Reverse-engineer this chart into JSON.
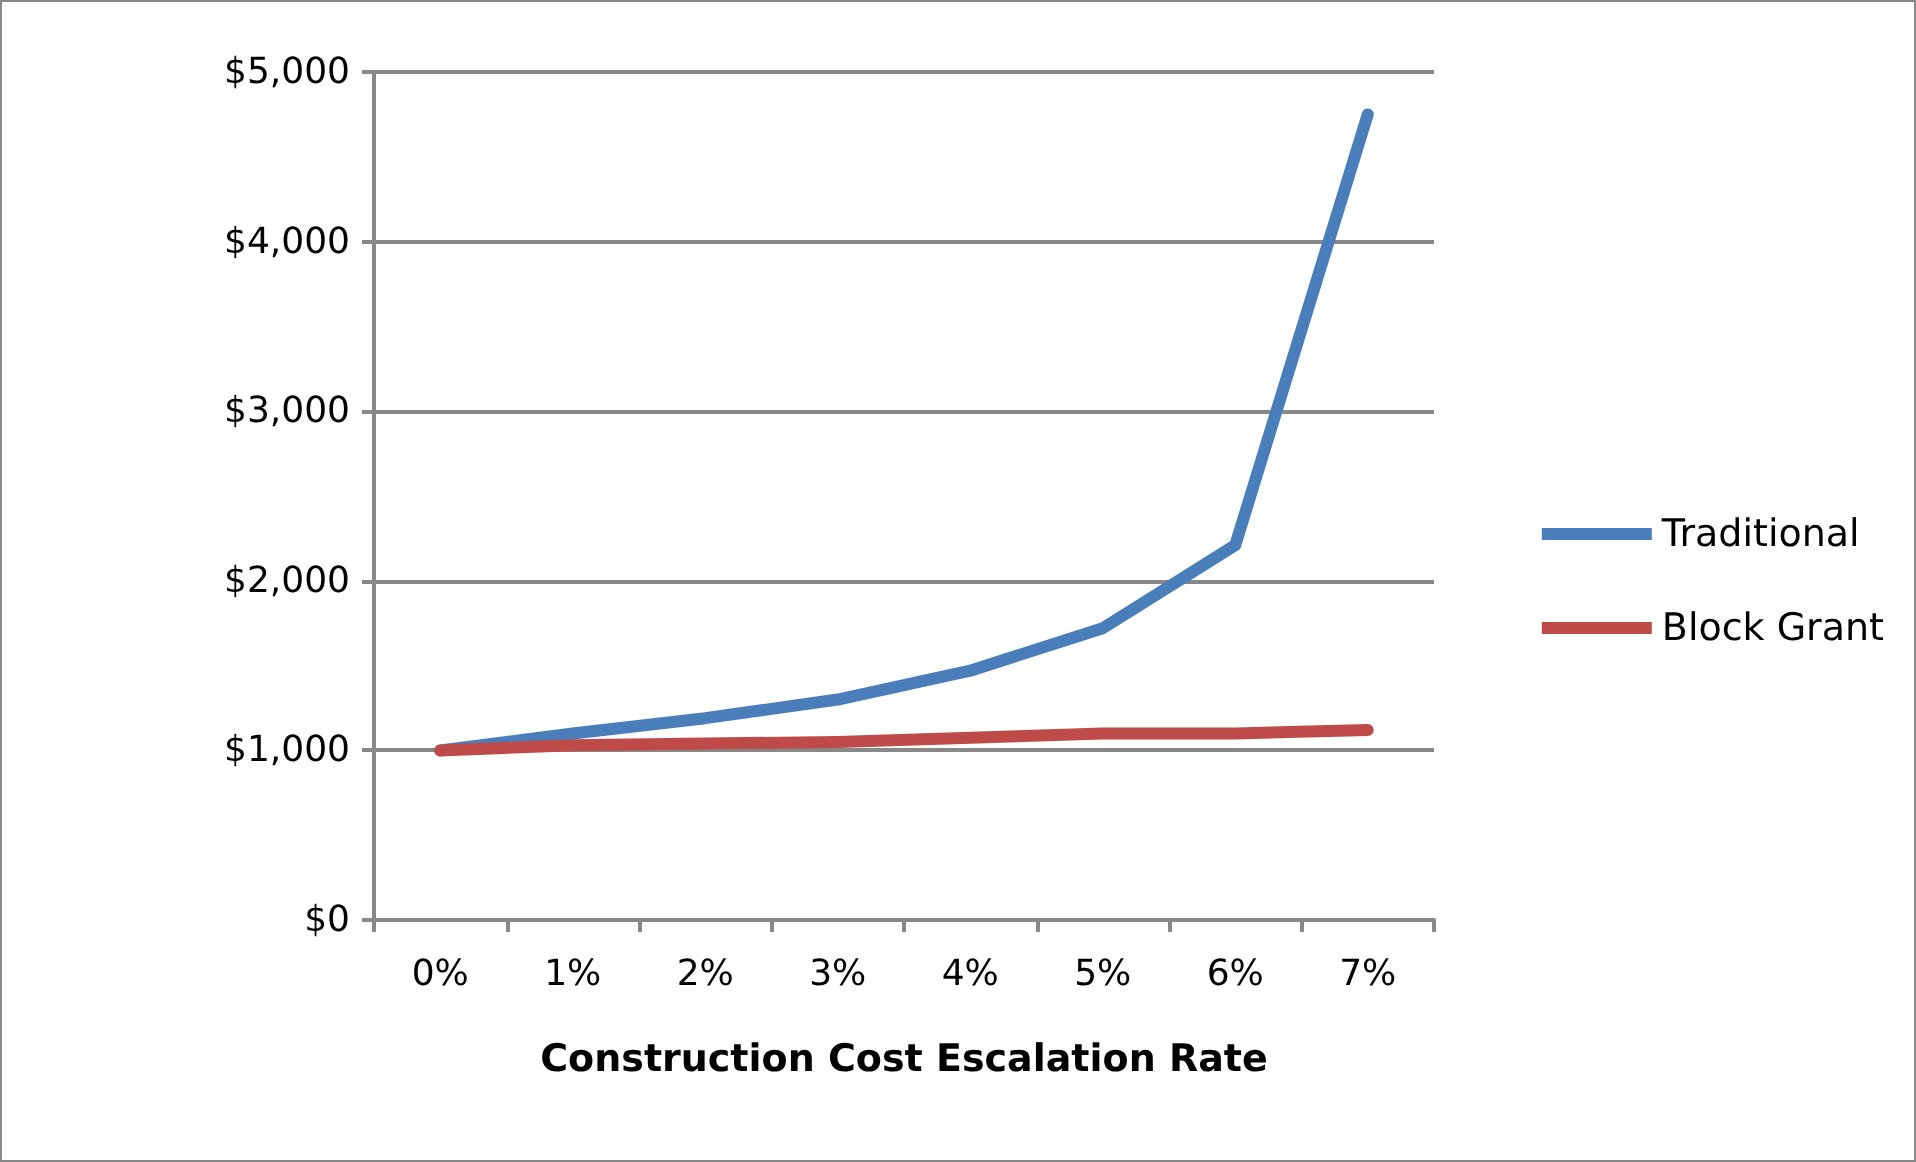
{
  "chart_data": {
    "type": "line",
    "xlabel": "Construction Cost Escalation Rate",
    "categories": [
      "0%",
      "1%",
      "2%",
      "3%",
      "4%",
      "5%",
      "6%",
      "7%"
    ],
    "series": [
      {
        "name": "Traditional",
        "color": "#4a7ebb",
        "values": [
          1000,
          1100,
          1190,
          1300,
          1470,
          1720,
          2210,
          4750
        ]
      },
      {
        "name": "Block Grant",
        "color": "#be4b48",
        "values": [
          1000,
          1030,
          1040,
          1050,
          1075,
          1100,
          1100,
          1120
        ]
      }
    ],
    "ylim": [
      0,
      5000
    ],
    "yticks": [
      {
        "value": 0,
        "label": "$0"
      },
      {
        "value": 1000,
        "label": "$1,000"
      },
      {
        "value": 2000,
        "label": "$2,000"
      },
      {
        "value": 3000,
        "label": "$3,000"
      },
      {
        "value": 4000,
        "label": "$4,000"
      },
      {
        "value": 5000,
        "label": "$5,000"
      }
    ],
    "grid": "y",
    "legend": "right",
    "marker": "none",
    "line_style": "solid"
  }
}
